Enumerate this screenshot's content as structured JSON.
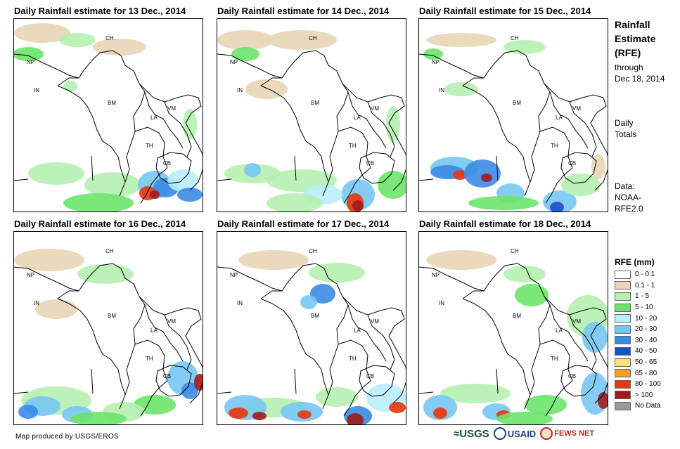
{
  "panels": [
    {
      "title": "Daily Rainfall estimate for 13 Dec., 2014"
    },
    {
      "title": "Daily Rainfall estimate for 14 Dec., 2014"
    },
    {
      "title": "Daily Rainfall estimate for 15 Dec., 2014"
    },
    {
      "title": "Daily Rainfall estimate for 16 Dec., 2014"
    },
    {
      "title": "Daily Rainfall estimate for 17 Dec., 2014"
    },
    {
      "title": "Daily Rainfall estimate for 18 Dec., 2014"
    }
  ],
  "country_labels": {
    "ch": "CH",
    "np": "NP",
    "in": "IN",
    "bm": "BM",
    "la": "LA",
    "vm": "VM",
    "th": "TH",
    "cb": "CB"
  },
  "side": {
    "title_line1": "Rainfall",
    "title_line2": "Estimate",
    "title_line3": "(RFE)",
    "through": "through",
    "date": "Dec 18, 2014",
    "daily": "Daily",
    "totals": "Totals",
    "data_label": "Data:",
    "source1": "NOAA-",
    "source2": "RFE2.0"
  },
  "legend": {
    "title": "RFE (mm)",
    "items": [
      {
        "label": "0 - 0.1",
        "color": "#ffffff"
      },
      {
        "label": "0.1 - 1",
        "color": "#e8d5b5"
      },
      {
        "label": "1 - 5",
        "color": "#b5f0b0"
      },
      {
        "label": "5 - 10",
        "color": "#6ce46a"
      },
      {
        "label": "10 - 20",
        "color": "#b9eefb"
      },
      {
        "label": "20 - 30",
        "color": "#77c6f2"
      },
      {
        "label": "30 - 40",
        "color": "#3a8be6"
      },
      {
        "label": "40 - 50",
        "color": "#1b4fc7"
      },
      {
        "label": "50 - 65",
        "color": "#f9e07a"
      },
      {
        "label": "65 - 80",
        "color": "#f5a11c"
      },
      {
        "label": "80 - 100",
        "color": "#e8360e"
      },
      {
        "label": "> 100",
        "color": "#a01a1a"
      },
      {
        "label": "No Data",
        "color": "#9a9a9a"
      }
    ]
  },
  "footer": "Map produced by USGS/EROS",
  "logos": {
    "usgs": "≈USGS",
    "usaid": "USAID",
    "fews": "FEWS NET"
  }
}
